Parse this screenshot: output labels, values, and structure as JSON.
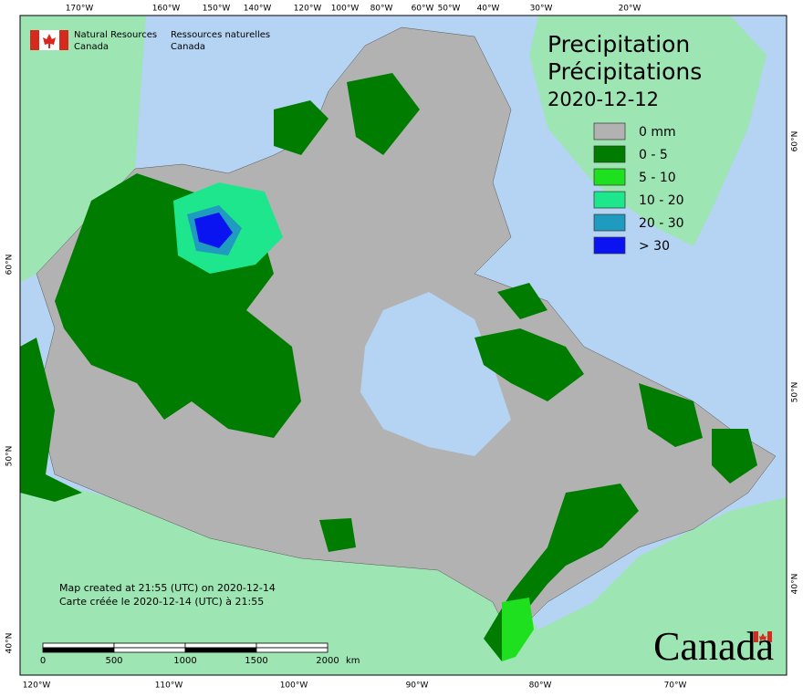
{
  "header": {
    "org_en": [
      "Natural Resources",
      "Canada"
    ],
    "org_fr": [
      "Ressources naturelles",
      "Canada"
    ]
  },
  "title": {
    "en": "Precipitation",
    "fr": "Précipitations",
    "date": "2020-12-12"
  },
  "legend": [
    {
      "label": "0 mm",
      "color": "#b2b2b2"
    },
    {
      "label": "0 - 5",
      "color": "#007d00"
    },
    {
      "label": "5 - 10",
      "color": "#1ee01e"
    },
    {
      "label": "10 - 20",
      "color": "#1ee68c"
    },
    {
      "label": "20 - 30",
      "color": "#1e9bbe"
    },
    {
      "label": "> 30",
      "color": "#0a14f0"
    }
  ],
  "top_labels": [
    "170°W",
    "160°W",
    "150°W",
    "140°W",
    "120°W",
    "100°W",
    "80°W",
    "60°W",
    "50°W",
    "40°W",
    "30°W",
    "20°W"
  ],
  "bottom_labels": [
    "120°W",
    "110°W",
    "100°W",
    "90°W",
    "80°W",
    "70°W"
  ],
  "left_labels": [
    "60°N",
    "50°N",
    "40°N"
  ],
  "right_labels": [
    "60°N",
    "50°N",
    "40°N"
  ],
  "credits": [
    "Map created at 21:55 (UTC) on 2020-12-14",
    "Carte créée le 2020-12-14 (UTC) à 21:55"
  ],
  "scale_bar": {
    "labels": [
      "0",
      "500",
      "1000",
      "1500",
      "2000"
    ],
    "unit": "km"
  },
  "wordmark": "Canada"
}
